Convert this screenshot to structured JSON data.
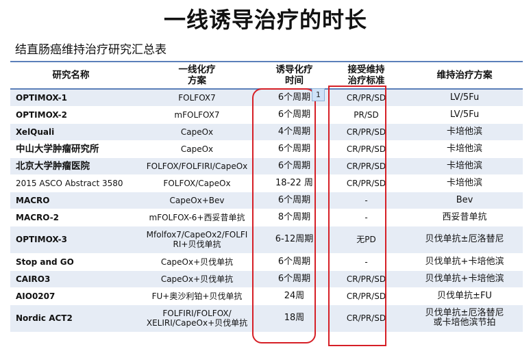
{
  "title": "一线诱导治疗的时长",
  "subtitle": "结直肠癌维持治疗研究汇总表",
  "badge": "1",
  "table": {
    "headers": {
      "study": "研究名称",
      "firstline_1": "一线化疗",
      "firstline_2": "方案",
      "induction_1": "诱导化疗",
      "induction_2": "时间",
      "criteria_1": "接受维持",
      "criteria_2": "治疗标准",
      "maintenance": "维持治疗方案"
    },
    "rows": [
      {
        "study": "OPTIMOX-1",
        "regimen": "FOLFOX7",
        "time": "6个周期",
        "criteria": "CR/PR/SD",
        "maint": "LV/5Fu"
      },
      {
        "study": "OPTIMOX-2",
        "regimen": "mFOLFOX7",
        "time": "6个周期",
        "criteria": "PR/SD",
        "maint": "LV/5Fu"
      },
      {
        "study": "XelQuali",
        "regimen": "CapeOx",
        "time": "4个周期",
        "criteria": "CR/PR/SD",
        "maint": "卡培他滨"
      },
      {
        "study": "中山大学肿瘤研究所",
        "regimen": "CapeOx",
        "time": "6个周期",
        "criteria": "CR/PR/SD",
        "maint": "卡培他滨"
      },
      {
        "study": "北京大学肿瘤医院",
        "regimen": "FOLFOX/FOLFIRI/CapeOx",
        "time": "6个周期",
        "criteria": "CR/PR/SD",
        "maint": "卡培他滨"
      },
      {
        "study": "2015 ASCO Abstract 3580",
        "regimen": "FOLFOX/CapeOx",
        "time": "18-22 周",
        "criteria": "CR/PR/SD",
        "maint": "卡培他滨"
      },
      {
        "study": "MACRO",
        "regimen": "CapeOx+Bev",
        "time": "6个周期",
        "criteria": "-",
        "maint": "Bev"
      },
      {
        "study": "MACRO-2",
        "regimen": "mFOLFOX-6+西妥昔单抗",
        "time": "8个周期",
        "criteria": "-",
        "maint": "西妥昔单抗"
      },
      {
        "study": "OPTIMOX-3",
        "regimen_1": "Mfolfox7/CapeOx2/FOLFI",
        "regimen_2": "RI+贝伐单抗",
        "time": "6-12周期",
        "criteria": "无PD",
        "maint": "贝伐单抗±厄洛替尼"
      },
      {
        "study": "Stop and GO",
        "regimen": "CapeOx+贝伐单抗",
        "time": "6个周期",
        "criteria": "-",
        "maint": "贝伐单抗+卡培他滨"
      },
      {
        "study": "CAIRO3",
        "regimen": "CapeOx+贝伐单抗",
        "time": "6个周期",
        "criteria": "CR/PR/SD",
        "maint": "贝伐单抗+卡培他滨"
      },
      {
        "study": "AIO0207",
        "regimen": "FU+奥沙利铂+贝伐单抗",
        "time": "24周",
        "criteria": "CR/PR/SD",
        "maint": "贝伐单抗±FU"
      },
      {
        "study": "Nordic ACT2",
        "regimen_1": "FOLFIRI/FOLFOX/",
        "regimen_2": "XELIRI/CapeOx+贝伐单抗",
        "time": "18周",
        "criteria": "CR/PR/SD",
        "maint_1": "贝伐单抗±厄洛替尼",
        "maint_2": "或卡培他滨节拍"
      }
    ]
  },
  "colors": {
    "highlight_box": "#d61f26",
    "row_stripe": "#e6ecf5",
    "header_rule": "#5b7fb9"
  }
}
